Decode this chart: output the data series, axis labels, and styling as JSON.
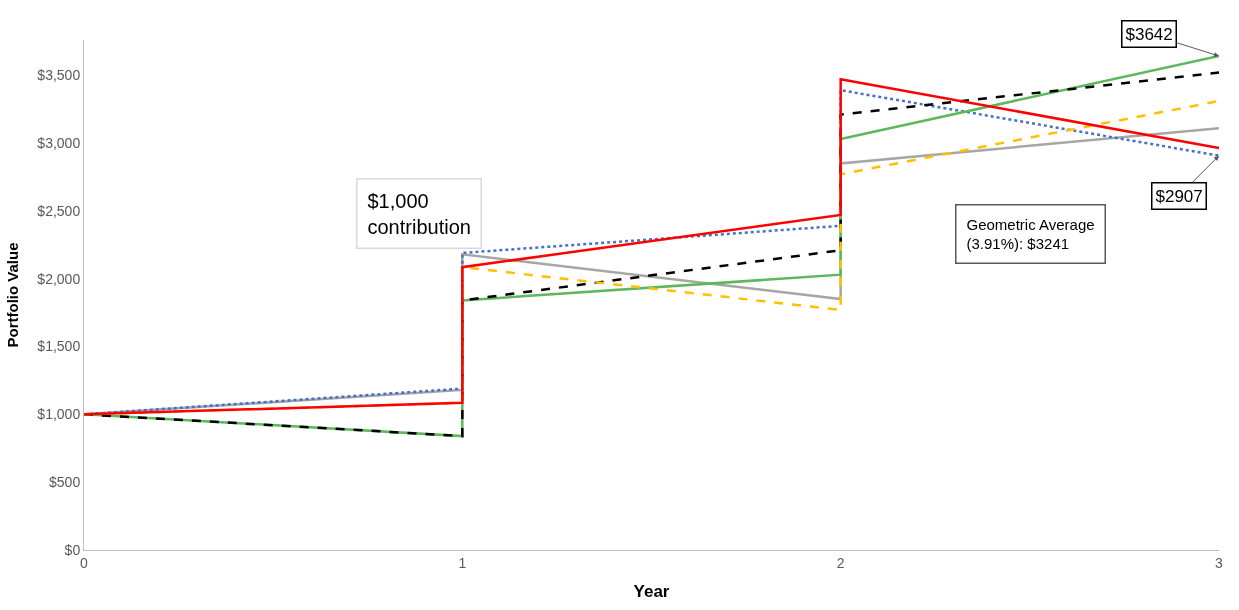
{
  "chart_data": {
    "type": "line",
    "xlabel": "Year",
    "ylabel": "Portfolio Value",
    "xlim": [
      0,
      3
    ],
    "xticks": [
      0,
      1,
      2,
      3
    ],
    "ylim": [
      0,
      3760
    ],
    "yticks": [
      {
        "value": 0,
        "label": "$0"
      },
      {
        "value": 500,
        "label": "$500"
      },
      {
        "value": 1000,
        "label": "$1,000"
      },
      {
        "value": 1500,
        "label": "$1,500"
      },
      {
        "value": 2000,
        "label": "$2,000"
      },
      {
        "value": 2500,
        "label": "$2,500"
      },
      {
        "value": 3000,
        "label": "$3,000"
      },
      {
        "value": 3500,
        "label": "$3,500"
      }
    ],
    "x": [
      0,
      1,
      1,
      2,
      2,
      3
    ],
    "series": [
      {
        "color": "#a6a6a6",
        "line_style": "solid",
        "values": [
          1000,
          1180,
          2180,
          1850,
          2850,
          3110
        ]
      },
      {
        "color": "#4472c4",
        "line_style": "dotted",
        "values": [
          1000,
          1190,
          2190,
          2390,
          3390,
          2907
        ]
      },
      {
        "color": "#5cb85c",
        "line_style": "solid",
        "values": [
          1000,
          840,
          1840,
          2030,
          3030,
          3642
        ]
      },
      {
        "color": "#000000",
        "line_style": "dashed",
        "values": [
          1000,
          840,
          1840,
          2210,
          3210,
          3520
        ]
      },
      {
        "color": "#ffc000",
        "line_style": "dashed",
        "values": [
          1000,
          1085,
          2085,
          1770,
          2770,
          3310
        ]
      },
      {
        "color": "#ff0000",
        "line_style": "solid",
        "values": [
          1000,
          1085,
          2085,
          2470,
          3470,
          2964
        ]
      }
    ],
    "annotations": [
      "$1,000\ncontribution",
      "Geometric Average\n(3.91%): $3241",
      {
        "text": "$3642",
        "x": 3,
        "y": 3642
      },
      {
        "text": "$2907",
        "x": 3,
        "y": 2907
      }
    ]
  }
}
